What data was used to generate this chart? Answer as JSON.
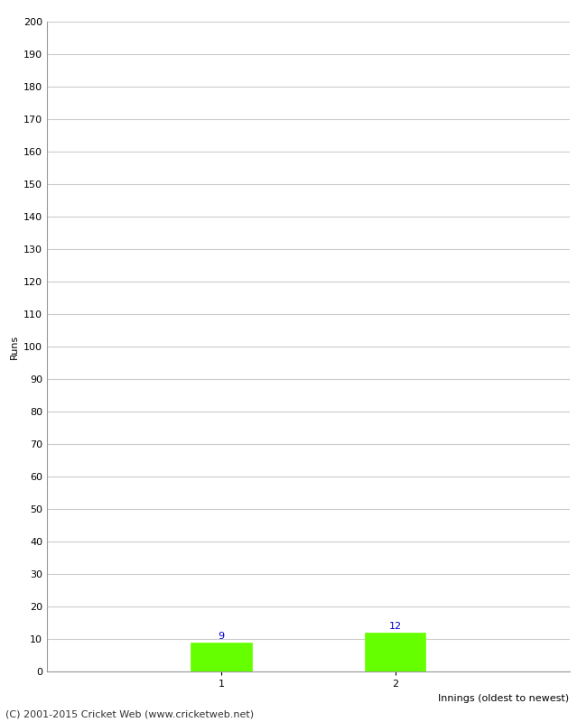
{
  "xlabel": "Innings (oldest to newest)",
  "ylabel": "Runs",
  "categories": [
    1,
    2
  ],
  "values": [
    9,
    12
  ],
  "bar_color": "#66ff00",
  "bar_edge_color": "#66ff00",
  "value_label_color": "#0000cc",
  "ylim": [
    0,
    200
  ],
  "ytick_step": 10,
  "background_color": "#ffffff",
  "grid_color": "#cccccc",
  "footer": "(C) 2001-2015 Cricket Web (www.cricketweb.net)",
  "value_fontsize": 8,
  "axis_fontsize": 8,
  "label_fontsize": 8,
  "footer_fontsize": 8,
  "bar_width": 0.35,
  "xlim": [
    0.0,
    3.0
  ]
}
